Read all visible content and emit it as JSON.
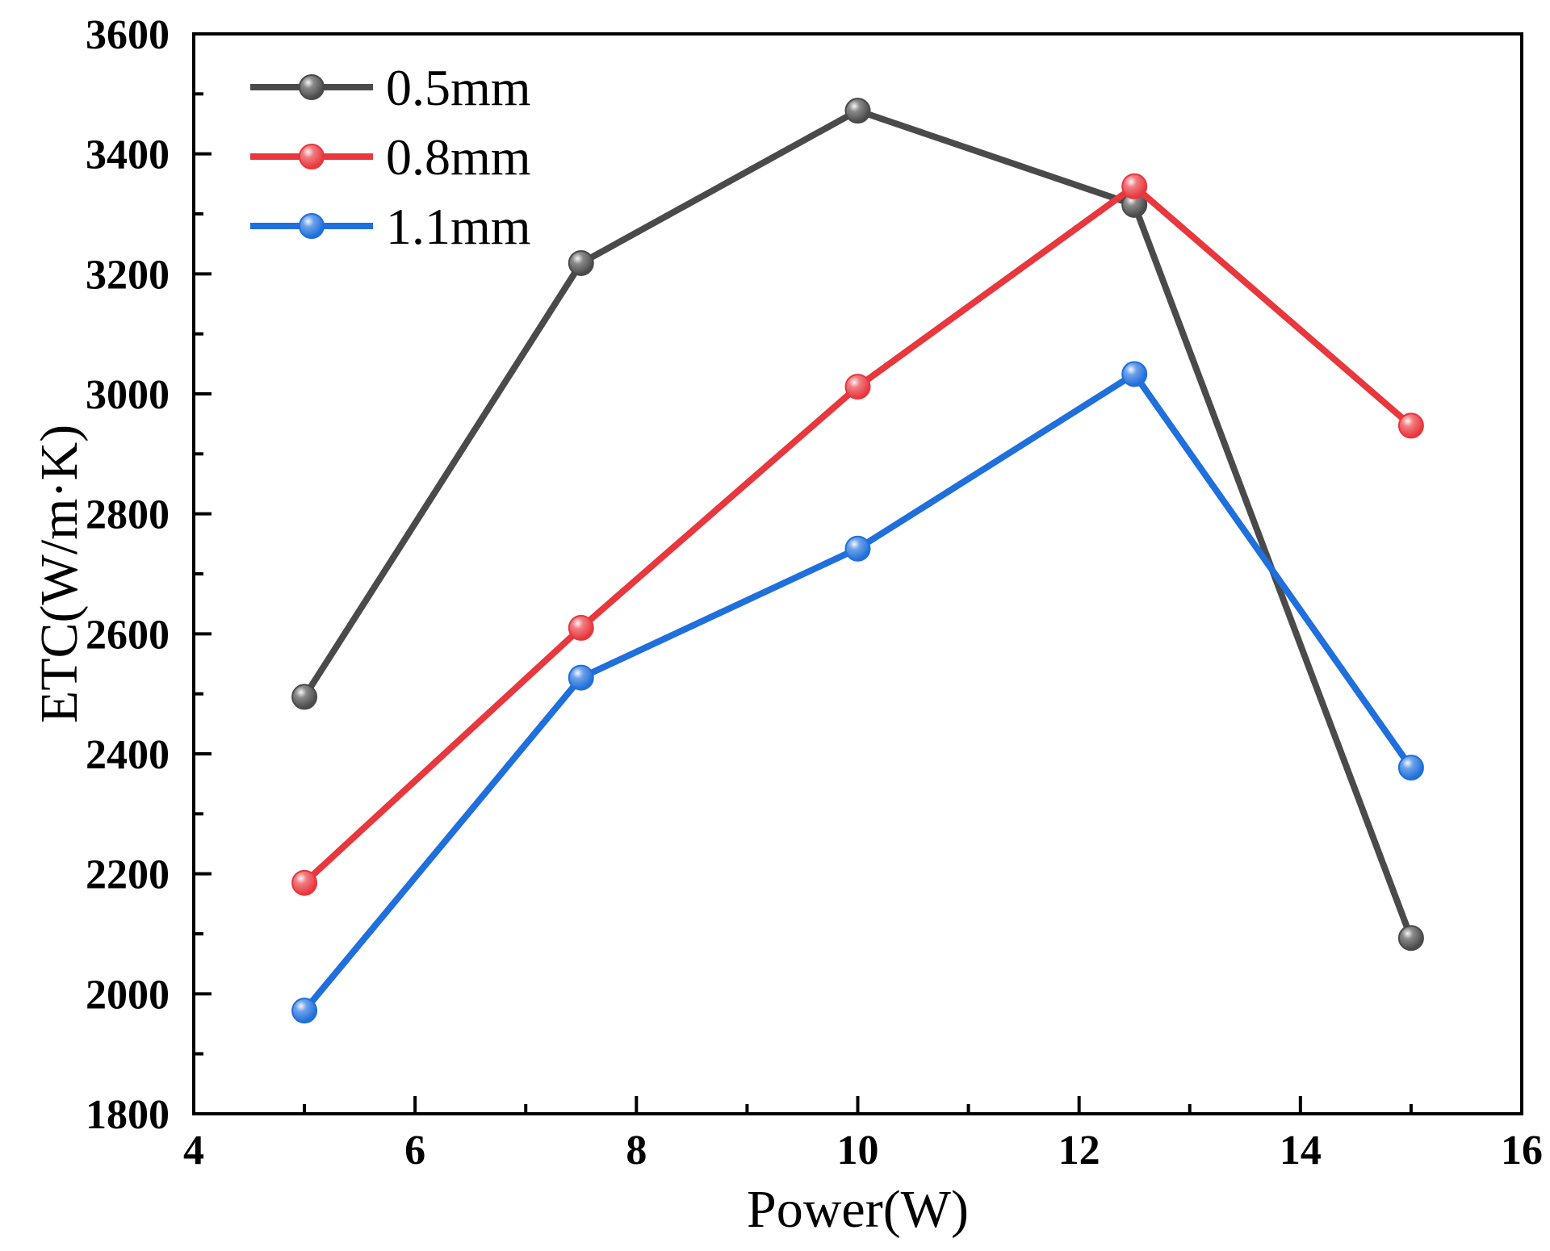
{
  "chart_data": {
    "type": "line",
    "title": "",
    "xlabel": "Power(W)",
    "ylabel": "ETC(W/m·K)",
    "xlim": [
      4,
      16
    ],
    "ylim": [
      1800,
      3600
    ],
    "xticks": [
      4,
      6,
      8,
      10,
      12,
      14,
      16
    ],
    "yticks": [
      1800,
      2000,
      2200,
      2400,
      2600,
      2800,
      3000,
      3200,
      3400,
      3600
    ],
    "legend_position": "top-left",
    "grid": false,
    "x": [
      5,
      7.5,
      10,
      12.5,
      15
    ],
    "series": [
      {
        "name": "0.5mm",
        "color": "#4a4a4a",
        "values": [
          2495,
          3218,
          3472,
          3315,
          2093
        ]
      },
      {
        "name": "0.8mm",
        "color": "#e8373d",
        "values": [
          2185,
          2610,
          3012,
          3346,
          2947
        ]
      },
      {
        "name": "1.1mm",
        "color": "#1f6fdc",
        "values": [
          1972,
          2527,
          2742,
          3033,
          2377
        ]
      }
    ]
  }
}
